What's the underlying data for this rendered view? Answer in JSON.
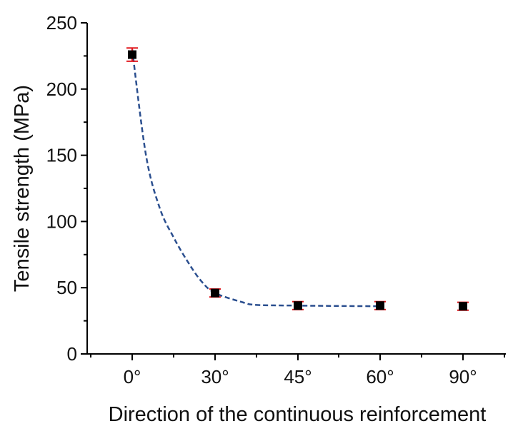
{
  "chart_data": {
    "type": "scatter",
    "xlabel": "Direction of the continuous reinforcement",
    "ylabel": "Tensile strength (MPa)",
    "categories": [
      "0°",
      "30°",
      "45°",
      "60°",
      "90°"
    ],
    "y_ticks": [
      "0",
      "50",
      "100",
      "150",
      "200",
      "250"
    ],
    "ylim": [
      0,
      250
    ],
    "grid": false,
    "legend": "none",
    "series": [
      {
        "values": [
          226,
          46,
          36.5,
          36.5,
          36
        ],
        "errors": [
          5,
          3,
          3,
          3,
          3
        ],
        "marker": "square",
        "marker_color": "#000000",
        "error_color": "#e0161c"
      }
    ],
    "fit_curve": {
      "style": "dashed",
      "color": "#2b4f8f",
      "points": [
        [
          0,
          230
        ],
        [
          5,
          150
        ],
        [
          10,
          110
        ],
        [
          15,
          88
        ],
        [
          20,
          70
        ],
        [
          25,
          55
        ],
        [
          30,
          46
        ],
        [
          40,
          39
        ],
        [
          45,
          37
        ],
        [
          60,
          36.5
        ],
        [
          75,
          36.2
        ],
        [
          90,
          36
        ]
      ]
    }
  }
}
